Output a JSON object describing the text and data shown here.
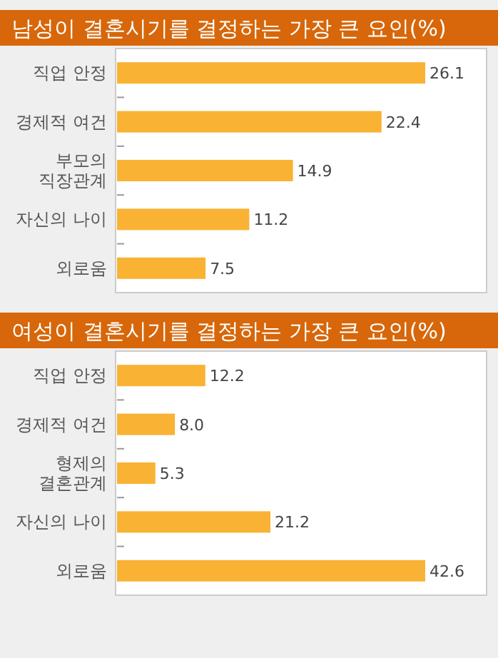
{
  "chart_data": [
    {
      "type": "bar",
      "orientation": "horizontal",
      "title": "남성이 결혼시기를 결정하는 가장 큰 요인(%)",
      "categories": [
        "직업 안정",
        "경제적 여건",
        "부모의\n직장관계",
        "자신의 나이",
        "외로움"
      ],
      "values": [
        26.1,
        22.4,
        14.9,
        11.2,
        7.5
      ],
      "colors": [
        "#f9b233",
        "#f9b233",
        "#f9b233",
        "#f9b233",
        "#f9b233"
      ],
      "value_labels": [
        "26.1",
        "22.4",
        "14.9",
        "11.2",
        "7.5"
      ]
    },
    {
      "type": "bar",
      "orientation": "horizontal",
      "title": "여성이 결혼시기를 결정하는 가장 큰 요인(%)",
      "categories": [
        "직업 안정",
        "경제적 여건",
        "형제의\n결혼관계",
        "자신의 나이",
        "외로움"
      ],
      "values": [
        12.2,
        8.0,
        5.3,
        21.2,
        42.6
      ],
      "colors": [
        "#f9b233",
        "#f9b233",
        "#f9b233",
        "#f9b233",
        "#f9b233"
      ],
      "value_labels": [
        "12.2",
        "8.0",
        "5.3",
        "21.2",
        "42.6"
      ]
    }
  ]
}
